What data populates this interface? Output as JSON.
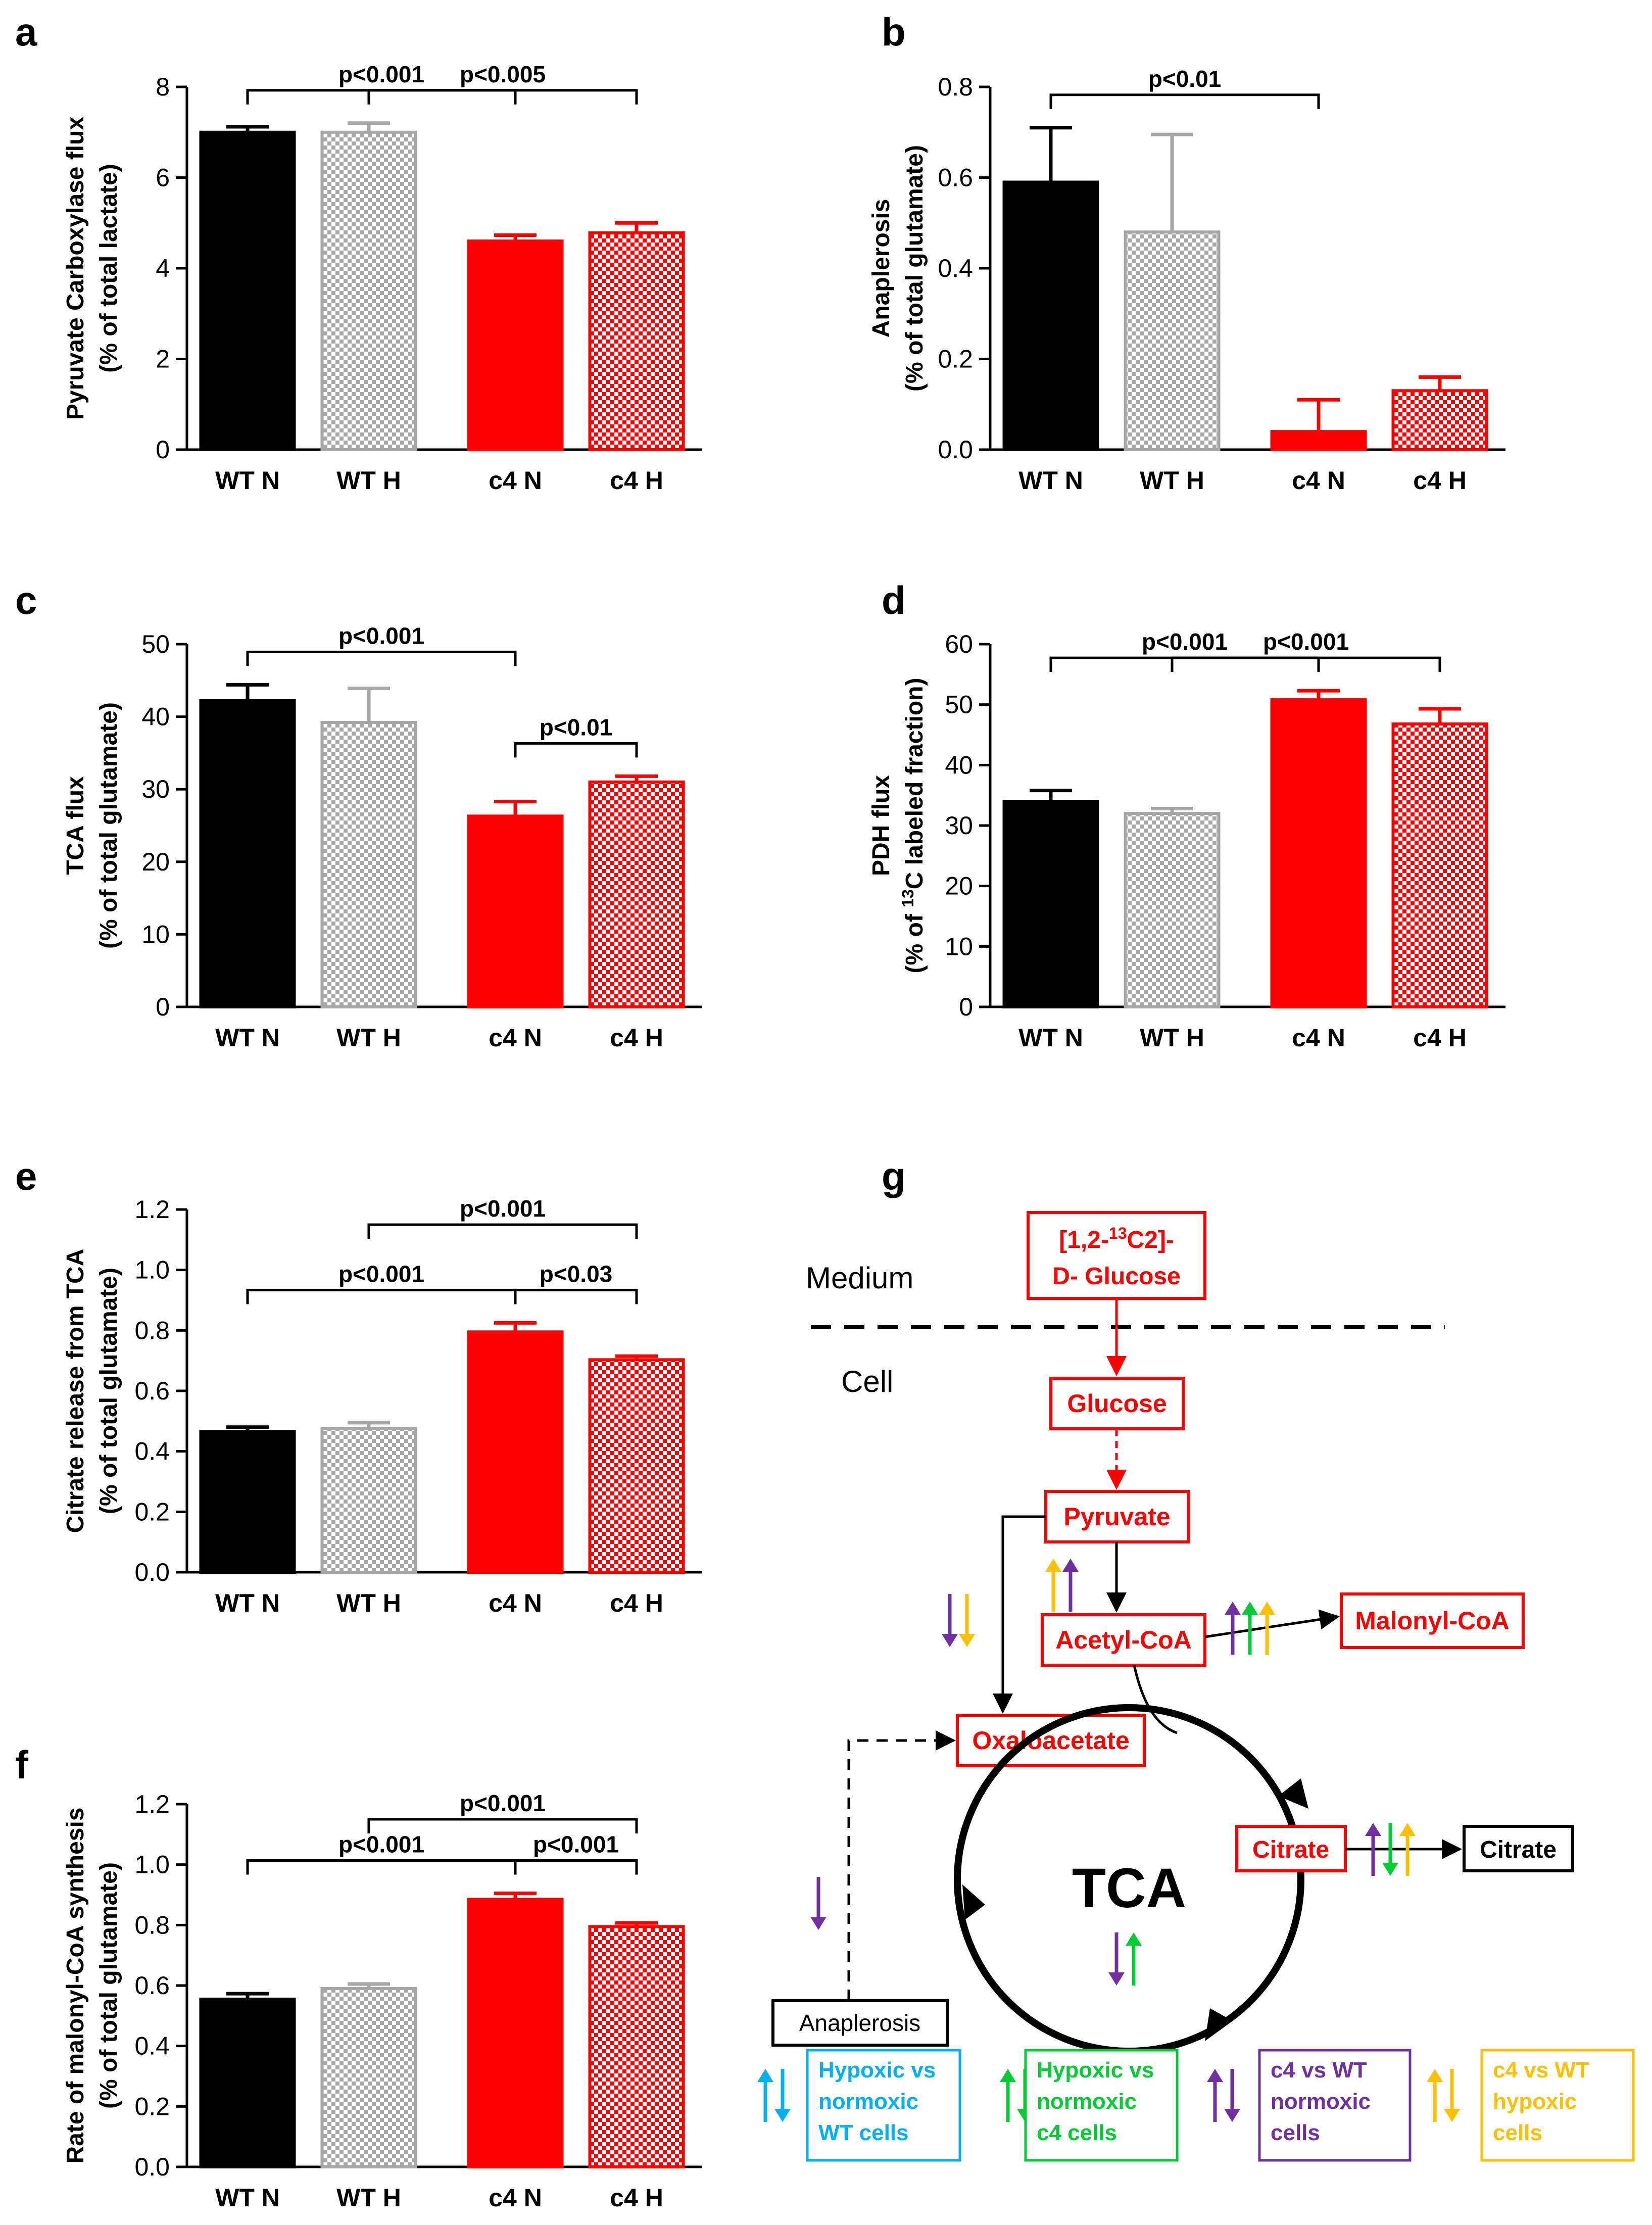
{
  "chart_data": [
    {
      "panel": "a",
      "type": "bar",
      "categories": [
        "WT N",
        "WT H",
        "c4 N",
        "c4 H"
      ],
      "values": [
        7.0,
        7.0,
        4.6,
        4.78
      ],
      "errors": [
        0.12,
        0.2,
        0.13,
        0.22
      ],
      "ylabel_lines": [
        "Pyruvate Carboxylase flux",
        "(% of total lactate)"
      ],
      "ylim": [
        0,
        8
      ],
      "yticks": [
        0,
        2,
        4,
        6,
        8
      ],
      "tick_decimals": 0,
      "comparisons": [
        {
          "from": 0,
          "to": 2,
          "label": "p<0.001"
        },
        {
          "from": 1,
          "to": 3,
          "label": "p<0.005"
        }
      ]
    },
    {
      "panel": "b",
      "type": "bar",
      "categories": [
        "WT N",
        "WT H",
        "c4 N",
        "c4 H"
      ],
      "values": [
        0.59,
        0.48,
        0.04,
        0.13
      ],
      "errors": [
        0.12,
        0.215,
        0.07,
        0.03
      ],
      "ylabel_lines": [
        "Anaplerosis",
        "(% of total glutamate)"
      ],
      "ylim": [
        0,
        0.8
      ],
      "yticks": [
        0.0,
        0.2,
        0.4,
        0.6,
        0.8
      ],
      "tick_decimals": 1,
      "comparisons": [
        {
          "from": 0,
          "to": 2,
          "label": "p<0.01"
        }
      ]
    },
    {
      "panel": "c",
      "type": "bar",
      "categories": [
        "WT N",
        "WT H",
        "c4 N",
        "c4 H"
      ],
      "values": [
        42.2,
        39.2,
        26.3,
        31.0
      ],
      "errors": [
        2.2,
        4.7,
        2.0,
        0.8
      ],
      "ylabel_lines": [
        "TCA flux",
        "(% of total glutamate)"
      ],
      "ylim": [
        0,
        50
      ],
      "yticks": [
        0,
        10,
        20,
        30,
        40,
        50
      ],
      "tick_decimals": 0,
      "comparisons": [
        {
          "from": 0,
          "to": 2,
          "label": "p<0.001"
        },
        {
          "from": 2,
          "to": 3,
          "label": "p<0.01"
        }
      ]
    },
    {
      "panel": "d",
      "type": "bar",
      "categories": [
        "WT N",
        "WT H",
        "c4 N",
        "c4 H"
      ],
      "values": [
        34.0,
        32.0,
        50.8,
        46.8
      ],
      "errors": [
        1.8,
        0.8,
        1.5,
        2.5
      ],
      "ylabel_lines": [
        "PDH flux",
        "(% of 13C labeled fraction)"
      ],
      "ylim": [
        0,
        60
      ],
      "yticks": [
        0,
        10,
        20,
        30,
        40,
        50,
        60
      ],
      "tick_decimals": 0,
      "comparisons": [
        {
          "from": 0,
          "to": 2,
          "label": "p<0.001"
        },
        {
          "from": 1,
          "to": 3,
          "label": "p<0.001"
        }
      ]
    },
    {
      "panel": "e",
      "type": "bar",
      "categories": [
        "WT N",
        "WT H",
        "c4 N",
        "c4 H"
      ],
      "values": [
        0.465,
        0.475,
        0.795,
        0.703
      ],
      "errors": [
        0.015,
        0.02,
        0.03,
        0.012
      ],
      "ylabel_lines": [
        "Citrate release from TCA",
        "(% of total glutamate)"
      ],
      "ylim": [
        0,
        1.2
      ],
      "yticks": [
        0.0,
        0.2,
        0.4,
        0.6,
        0.8,
        1.0,
        1.2
      ],
      "tick_decimals": 1,
      "comparisons": [
        {
          "from": 0,
          "to": 2,
          "label": "p<0.001"
        },
        {
          "from": 2,
          "to": 3,
          "label": "p<0.03"
        },
        {
          "from": 1,
          "to": 3,
          "label": "p<0.001"
        }
      ]
    },
    {
      "panel": "f",
      "type": "bar",
      "categories": [
        "WT N",
        "WT H",
        "c4 N",
        "c4 H"
      ],
      "values": [
        0.555,
        0.59,
        0.885,
        0.795
      ],
      "errors": [
        0.018,
        0.015,
        0.02,
        0.012
      ],
      "ylabel_lines": [
        "Rate of malonyl-CoA synthesis",
        "(% of total glutamate)"
      ],
      "ylim": [
        0,
        1.2
      ],
      "yticks": [
        0.0,
        0.2,
        0.4,
        0.6,
        0.8,
        1.0,
        1.2
      ],
      "tick_decimals": 1,
      "comparisons": [
        {
          "from": 0,
          "to": 2,
          "label": "p<0.001"
        },
        {
          "from": 2,
          "to": 3,
          "label": "p<0.001"
        },
        {
          "from": 1,
          "to": 3,
          "label": "p<0.001"
        }
      ]
    }
  ],
  "bar_styles": [
    {
      "fill": "#000000",
      "pattern": "none"
    },
    {
      "fill": "#a6a6a6",
      "pattern": "checker"
    },
    {
      "fill": "#ff0000",
      "pattern": "none"
    },
    {
      "fill": "#ff0000",
      "pattern": "checker"
    }
  ],
  "colors": {
    "red": "#ff0000",
    "black": "#000000",
    "gray": "#a6a6a6",
    "cyan": "#00b0f0",
    "green": "#00cc33",
    "purple": "#7030a0",
    "orange": "#ffc000"
  },
  "diagram": {
    "panel": "g",
    "medium_label": "Medium",
    "cell_label": "Cell",
    "glucose_source": "[1,2-13C2]- D- Glucose",
    "glucose_source_lines": [
      "[1,2-",
      "13",
      "C2]-",
      "D- Glucose"
    ],
    "glucose": "Glucose",
    "pyruvate": "Pyruvate",
    "acetyl_coa": "Acetyl-CoA",
    "malonyl_coa": "Malonyl-CoA",
    "oxaloacetate": "Oxaloacetate",
    "citrate_in": "Citrate",
    "citrate_out": "Citrate",
    "tca": "TCA",
    "anaplerosis": "Anaplerosis",
    "legend": [
      {
        "color": "cyan",
        "lines": [
          "Hypoxic vs",
          "normoxic",
          "WT cells"
        ],
        "arrows": [
          "up",
          "down"
        ]
      },
      {
        "color": "green",
        "lines": [
          "Hypoxic vs",
          "normoxic",
          "c4 cells"
        ],
        "arrows": [
          "up",
          "down"
        ]
      },
      {
        "color": "purple",
        "lines": [
          "c4 vs WT",
          "normoxic",
          "cells"
        ],
        "arrows": [
          "up",
          "down"
        ]
      },
      {
        "color": "orange",
        "lines": [
          "c4 vs WT",
          "hypoxic",
          "cells"
        ],
        "arrows": [
          "up",
          "down"
        ]
      }
    ],
    "change_arrows": [
      {
        "near": "pyruvate-to-oxaloacetate",
        "items": [
          {
            "color": "purple",
            "dir": "down"
          },
          {
            "color": "orange",
            "dir": "down"
          }
        ]
      },
      {
        "near": "pyruvate-to-acetyl-coa",
        "items": [
          {
            "color": "orange",
            "dir": "up"
          },
          {
            "color": "purple",
            "dir": "up"
          }
        ]
      },
      {
        "near": "acetyl-coa-to-malonyl-coa",
        "items": [
          {
            "color": "purple",
            "dir": "up"
          },
          {
            "color": "green",
            "dir": "up"
          },
          {
            "color": "orange",
            "dir": "up"
          }
        ]
      },
      {
        "near": "citrate-release",
        "items": [
          {
            "color": "purple",
            "dir": "up"
          },
          {
            "color": "green",
            "dir": "down"
          },
          {
            "color": "orange",
            "dir": "up"
          }
        ]
      },
      {
        "near": "tca-cycle",
        "items": [
          {
            "color": "purple",
            "dir": "down"
          },
          {
            "color": "green",
            "dir": "up"
          }
        ]
      },
      {
        "near": "anaplerosis",
        "items": [
          {
            "color": "purple",
            "dir": "down"
          }
        ]
      }
    ]
  }
}
